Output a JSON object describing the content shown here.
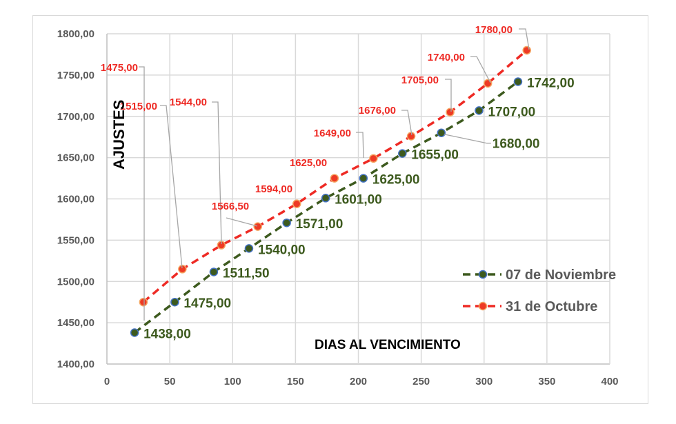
{
  "chart_data": {
    "type": "scatter",
    "title": "",
    "xlabel": "DIAS AL VENCIMIENTO",
    "ylabel": "AJUSTES",
    "xlim": [
      0,
      400
    ],
    "ylim": [
      1400,
      1800
    ],
    "x_ticks": [
      "0",
      "50",
      "100",
      "150",
      "200",
      "250",
      "300",
      "350",
      "400"
    ],
    "y_ticks": [
      "1400,00",
      "1450,00",
      "1500,00",
      "1550,00",
      "1600,00",
      "1650,00",
      "1700,00",
      "1750,00",
      "1800,00"
    ],
    "grid": true,
    "legend_position": "right-inside",
    "series": [
      {
        "name": "07 de Noviembre",
        "line_color": "#3d5a1e",
        "marker_color": "#3d5a1e",
        "marker_edge": "#4472c4",
        "line_style": "dashed",
        "x": [
          22,
          54,
          85,
          113,
          143,
          174,
          204,
          235,
          266,
          296,
          327
        ],
        "values": [
          1438.0,
          1475.0,
          1511.5,
          1540.0,
          1571.0,
          1601.0,
          1625.0,
          1655.0,
          1680.0,
          1707.0,
          1742.0
        ],
        "labels": [
          "1438,00",
          "1475,00",
          "1511,50",
          "1540,00",
          "1571,00",
          "1601,00",
          "1625,00",
          "1655,00",
          "1680,00",
          "1707,00",
          "1742,00"
        ]
      },
      {
        "name": "31 de Octubre",
        "line_color": "#ee2a24",
        "marker_color": "#ee3a24",
        "marker_edge": "#f4a460",
        "line_style": "dashed",
        "x": [
          29,
          60,
          91,
          120,
          151,
          181,
          212,
          242,
          273,
          303,
          334
        ],
        "values": [
          1475.0,
          1515.0,
          1544.0,
          1566.5,
          1594.0,
          1625.0,
          1649.0,
          1676.0,
          1705.0,
          1740.0,
          1780.0
        ],
        "labels": [
          "1475,00",
          "1515,00",
          "1544,00",
          "1566,50",
          "1594,00",
          "1625,00",
          "1649,00",
          "1676,00",
          "1705,00",
          "1740,00",
          "1780,00"
        ]
      }
    ]
  }
}
